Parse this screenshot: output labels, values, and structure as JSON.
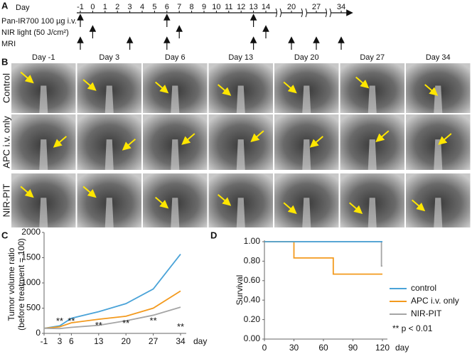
{
  "panels": {
    "a": "A",
    "b": "B",
    "c": "C",
    "d": "D"
  },
  "timeline": {
    "day_label": "Day",
    "ticks": [
      -1,
      0,
      1,
      2,
      3,
      4,
      5,
      6,
      7,
      8,
      9,
      10,
      11,
      12,
      13,
      14,
      20,
      27,
      34
    ],
    "rows": [
      {
        "label": "Pan-IR700 100 µg i.v.",
        "days": [
          -1,
          6,
          13
        ]
      },
      {
        "label": "NIR light (50 J/cm²)",
        "days": [
          0,
          7,
          14
        ]
      },
      {
        "label": "MRI",
        "days": [
          -1,
          3,
          6,
          13,
          20,
          27,
          34
        ]
      }
    ]
  },
  "images": {
    "columns": [
      "Day -1",
      "Day 3",
      "Day 6",
      "Day 13",
      "Day 20",
      "Day 27",
      "Day 34"
    ],
    "rows": [
      "Control",
      "APC i.v. only",
      "NIR-PIT"
    ]
  },
  "chart_data": [
    {
      "type": "line",
      "ylabel": [
        "Tumor volume ratio",
        "(before treatment = 100)"
      ],
      "xlabel": "day",
      "x": [
        -1,
        3,
        6,
        13,
        20,
        27,
        34
      ],
      "xlim": [
        -1,
        34
      ],
      "xticks": [
        -1,
        3,
        6,
        13,
        20,
        27,
        34
      ],
      "ylim": [
        0,
        2000
      ],
      "yticks": [
        0,
        500,
        1000,
        1500,
        2000
      ],
      "series": [
        {
          "name": "control",
          "color": "#4aa3d8",
          "values": [
            100,
            150,
            300,
            430,
            590,
            880,
            1570
          ]
        },
        {
          "name": "APC i.v. only",
          "color": "#f39a1e",
          "values": [
            100,
            130,
            210,
            280,
            340,
            500,
            840
          ]
        },
        {
          "name": "NIR-PIT",
          "color": "#a5a5a5",
          "values": [
            100,
            95,
            120,
            160,
            250,
            360,
            520
          ]
        }
      ],
      "annotations": [
        {
          "text": "**",
          "x": 3,
          "y": 230
        },
        {
          "text": "**",
          "x": 6,
          "y": 230
        },
        {
          "text": "**",
          "x": 13,
          "y": 150
        },
        {
          "text": "**",
          "x": 20,
          "y": 190
        },
        {
          "text": "**",
          "x": 27,
          "y": 240
        },
        {
          "text": "**",
          "x": 34,
          "y": 120
        }
      ]
    },
    {
      "type": "step",
      "ylabel": "Survival",
      "xlabel": "day",
      "xlim": [
        0,
        120
      ],
      "xticks": [
        0,
        30,
        60,
        90,
        120
      ],
      "ylim": [
        0,
        1
      ],
      "yticks": [
        {
          "value": 0,
          "label": "0.00"
        },
        {
          "value": 0.2,
          "label": "0.20"
        },
        {
          "value": 0.4,
          "label": "0.40"
        },
        {
          "value": 0.6,
          "label": "0.60"
        },
        {
          "value": 0.8,
          "label": "0.80"
        },
        {
          "value": 1,
          "label": "1.00"
        }
      ],
      "series": [
        {
          "name": "control",
          "color": "#4aa3d8",
          "x": [
            0,
            120
          ],
          "values": [
            1,
            1
          ]
        },
        {
          "name": "APC i.v. only",
          "color": "#f39a1e",
          "x": [
            0,
            30,
            70,
            120
          ],
          "values": [
            1,
            0.833,
            0.667,
            0.667
          ]
        },
        {
          "name": "NIR-PIT",
          "color": "#a5a5a5",
          "x": [
            0,
            119,
            120
          ],
          "values": [
            1,
            0.75,
            0.75
          ]
        }
      ],
      "note": "** p < 0.01"
    }
  ]
}
